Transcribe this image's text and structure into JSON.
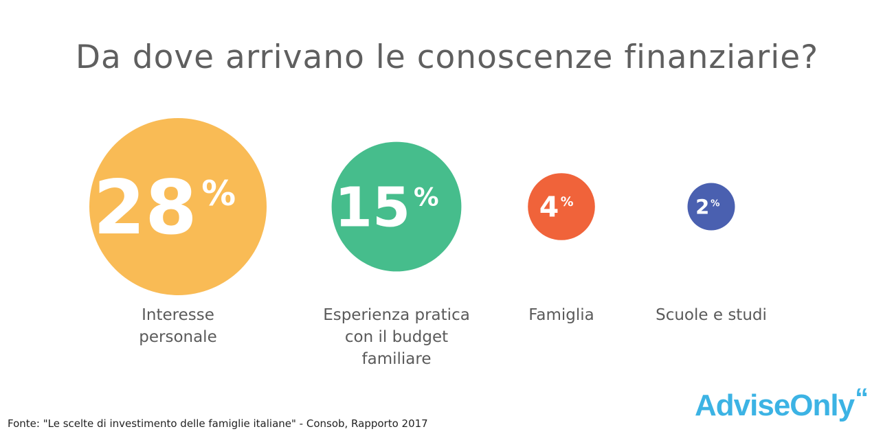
{
  "title": "Da dove arrivano le conoscenze finanziarie?",
  "chart_data": {
    "type": "bubble",
    "title": "Da dove arrivano le conoscenze finanziarie?",
    "unit": "%",
    "categories": [
      "Interesse personale",
      "Esperienza pratica con il budget familiare",
      "Famiglia",
      "Scuole e studi"
    ],
    "values": [
      28,
      15,
      4,
      2
    ],
    "value_labels": [
      "28",
      "15",
      "4",
      "2"
    ],
    "colors": [
      "#f9bb55",
      "#46bd8c",
      "#f0633a",
      "#4a60b0"
    ]
  },
  "labels": [
    {
      "lines": [
        "Interesse",
        "personale"
      ]
    },
    {
      "lines": [
        "Esperienza pratica",
        "con il budget",
        "familiare"
      ]
    },
    {
      "lines": [
        "Famiglia"
      ]
    },
    {
      "lines": [
        "Scuole e studi"
      ]
    }
  ],
  "source": "Fonte: \"Le scelte di investimento delle famiglie italiane\" - Consob, Rapporto 2017",
  "logo": {
    "text": "AdviseOnly",
    "mark": "“",
    "color": "#3cb3e4"
  }
}
